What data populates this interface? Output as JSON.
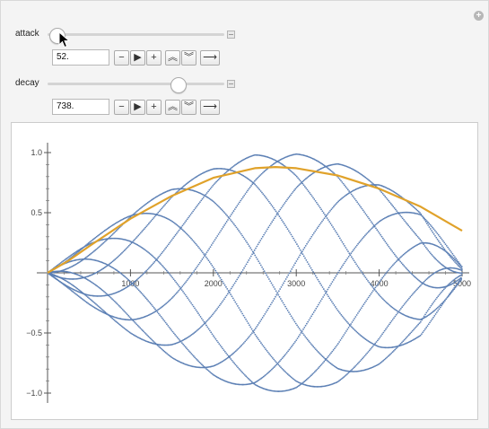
{
  "controls": [
    {
      "label": "attack",
      "value": "52.",
      "min": 0,
      "max": 1000,
      "position": 52
    },
    {
      "label": "decay",
      "value": "738.",
      "min": 0,
      "max": 1000,
      "position": 738
    }
  ],
  "buttons": {
    "minus": "−",
    "play": "▶",
    "plus": "+",
    "faster": "︽",
    "slower": "︾",
    "direction": "⟶"
  },
  "add_glyph": "+",
  "chart_data": {
    "type": "line",
    "title": "",
    "xlabel": "",
    "ylabel": "",
    "xlim": [
      0,
      5000
    ],
    "ylim": [
      -1.0,
      1.0
    ],
    "x_ticks": [
      "1000",
      "2000",
      "3000",
      "4000",
      "5000"
    ],
    "y_ticks": [
      "1.0",
      "0.5",
      "−0.5",
      "−1.0"
    ],
    "series": [
      {
        "color": "#5b7fb4",
        "style": "dotted oscillation",
        "x": [
          0,
          500,
          1000,
          1500,
          2000,
          2500,
          3000,
          3500,
          4000,
          4500,
          5000
        ],
        "envelope": [
          0.0,
          0.26,
          0.5,
          0.71,
          0.87,
          0.98,
          0.99,
          0.92,
          0.76,
          0.52,
          0.05
        ]
      },
      {
        "color": "#e0a22a",
        "style": "solid",
        "x": [
          0,
          250,
          500,
          1000,
          1500,
          2000,
          2500,
          2750,
          3000,
          3500,
          4000,
          4500,
          5000
        ],
        "y": [
          0.0,
          0.1,
          0.22,
          0.45,
          0.64,
          0.79,
          0.87,
          0.88,
          0.87,
          0.81,
          0.7,
          0.55,
          0.35
        ]
      }
    ]
  }
}
